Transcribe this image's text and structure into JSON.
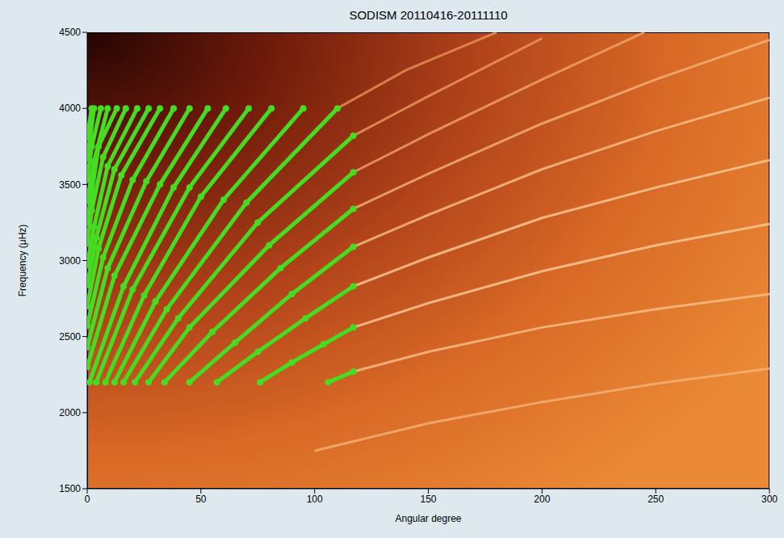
{
  "chart_data": {
    "type": "scatter",
    "title": "SODISM 20110416-20111110",
    "x_label": "Angular degree",
    "y_label": "Frequency (μHz)",
    "xlim": [
      0,
      300
    ],
    "ylim": [
      1500,
      4500
    ],
    "xticks": [
      0,
      50,
      100,
      150,
      200,
      250,
      300
    ],
    "yticks": [
      1500,
      2000,
      2500,
      3000,
      3500,
      4000,
      4500
    ],
    "series": [
      {
        "color": "#f3b37a",
        "marker": "none",
        "line_style": "solid",
        "x": [
          100,
          150,
          200,
          250,
          300
        ],
        "values": [
          1750,
          1930,
          2070,
          2190,
          2290
        ]
      },
      {
        "color": "#f6c08a",
        "marker": "none",
        "line_style": "solid",
        "x": [
          117,
          150,
          200,
          250,
          300
        ],
        "values": [
          2270,
          2400,
          2560,
          2680,
          2780
        ]
      },
      {
        "color": "#f8cc9a",
        "marker": "none",
        "line_style": "solid",
        "x": [
          117,
          150,
          200,
          250,
          300
        ],
        "values": [
          2560,
          2720,
          2930,
          3100,
          3240
        ]
      },
      {
        "color": "#f8cc9a",
        "marker": "none",
        "line_style": "solid",
        "x": [
          117,
          150,
          200,
          250,
          300
        ],
        "values": [
          2830,
          3020,
          3280,
          3480,
          3660
        ]
      },
      {
        "color": "#f6c08a",
        "marker": "none",
        "line_style": "solid",
        "x": [
          117,
          150,
          200,
          250,
          300
        ],
        "values": [
          3090,
          3300,
          3600,
          3850,
          4070
        ]
      },
      {
        "color": "#f3b37a",
        "marker": "none",
        "line_style": "solid",
        "x": [
          117,
          150,
          200,
          250,
          300
        ],
        "values": [
          3340,
          3570,
          3900,
          4190,
          4450
        ]
      },
      {
        "color": "#f0a56a",
        "marker": "none",
        "line_style": "solid",
        "x": [
          117,
          150,
          200,
          245
        ],
        "values": [
          3580,
          3830,
          4190,
          4500
        ]
      },
      {
        "color": "#ec9a60",
        "marker": "none",
        "line_style": "solid",
        "x": [
          117,
          150,
          200
        ],
        "values": [
          3820,
          4080,
          4460
        ]
      },
      {
        "color": "#e89058",
        "marker": "none",
        "line_style": "solid",
        "x": [
          110,
          140,
          180
        ],
        "values": [
          4000,
          4250,
          4500
        ]
      },
      {
        "color": "#44dd22",
        "marker": "circle",
        "line_style": "solid",
        "x": [
          106,
          117
        ],
        "values": [
          2200,
          2270
        ]
      },
      {
        "color": "#44dd22",
        "marker": "circle",
        "line_style": "solid",
        "x": [
          76,
          90,
          104,
          117
        ],
        "values": [
          2200,
          2330,
          2450,
          2560
        ]
      },
      {
        "color": "#44dd22",
        "marker": "circle",
        "line_style": "solid",
        "x": [
          57,
          75,
          96,
          117
        ],
        "values": [
          2200,
          2400,
          2620,
          2830
        ]
      },
      {
        "color": "#44dd22",
        "marker": "circle",
        "line_style": "solid",
        "x": [
          45,
          65,
          90,
          117
        ],
        "values": [
          2200,
          2460,
          2780,
          3090
        ]
      },
      {
        "color": "#44dd22",
        "marker": "circle",
        "line_style": "solid",
        "x": [
          34,
          55,
          85,
          117
        ],
        "values": [
          2200,
          2530,
          2950,
          3340
        ]
      },
      {
        "color": "#44dd22",
        "marker": "circle",
        "line_style": "solid",
        "x": [
          27,
          45,
          80,
          117
        ],
        "values": [
          2200,
          2560,
          3100,
          3580
        ]
      },
      {
        "color": "#44dd22",
        "marker": "circle",
        "line_style": "solid",
        "x": [
          21,
          40,
          75,
          117
        ],
        "values": [
          2200,
          2620,
          3250,
          3820
        ]
      },
      {
        "color": "#44dd22",
        "marker": "circle",
        "line_style": "solid",
        "x": [
          16,
          35,
          70,
          110
        ],
        "values": [
          2200,
          2680,
          3380,
          4000
        ]
      },
      {
        "color": "#44dd22",
        "marker": "circle",
        "line_style": "solid",
        "x": [
          12,
          30,
          60,
          95
        ],
        "values": [
          2200,
          2730,
          3400,
          4000
        ]
      },
      {
        "color": "#44dd22",
        "marker": "circle",
        "line_style": "solid",
        "x": [
          8,
          25,
          50,
          81
        ],
        "values": [
          2200,
          2770,
          3420,
          4000
        ]
      },
      {
        "color": "#44dd22",
        "marker": "circle",
        "line_style": "solid",
        "x": [
          4,
          20,
          45,
          71
        ],
        "values": [
          2200,
          2810,
          3480,
          4000
        ]
      },
      {
        "color": "#44dd22",
        "marker": "circle",
        "line_style": "solid",
        "x": [
          1,
          16,
          38,
          61
        ],
        "values": [
          2200,
          2830,
          3480,
          4000
        ]
      },
      {
        "color": "#44dd22",
        "marker": "circle",
        "line_style": "solid",
        "x": [
          0,
          12,
          32,
          53
        ],
        "values": [
          2300,
          2900,
          3500,
          4000
        ]
      },
      {
        "color": "#44dd22",
        "marker": "circle",
        "line_style": "solid",
        "x": [
          0,
          9,
          26,
          45
        ],
        "values": [
          2430,
          2950,
          3520,
          4000
        ]
      },
      {
        "color": "#44dd22",
        "marker": "circle",
        "line_style": "solid",
        "x": [
          0,
          7,
          20,
          38
        ],
        "values": [
          2570,
          3020,
          3530,
          4000
        ]
      },
      {
        "color": "#44dd22",
        "marker": "circle",
        "line_style": "solid",
        "x": [
          0,
          5,
          15,
          32
        ],
        "values": [
          2700,
          3080,
          3560,
          4000
        ]
      },
      {
        "color": "#44dd22",
        "marker": "circle",
        "line_style": "solid",
        "x": [
          0,
          4,
          12,
          27
        ],
        "values": [
          2840,
          3150,
          3600,
          4000
        ]
      },
      {
        "color": "#44dd22",
        "marker": "circle",
        "line_style": "solid",
        "x": [
          0,
          3,
          9,
          22
        ],
        "values": [
          2970,
          3220,
          3620,
          4000
        ]
      },
      {
        "color": "#44dd22",
        "marker": "circle",
        "line_style": "solid",
        "x": [
          0,
          2,
          7,
          17
        ],
        "values": [
          3110,
          3330,
          3680,
          4000
        ]
      },
      {
        "color": "#44dd22",
        "marker": "circle",
        "line_style": "solid",
        "x": [
          0,
          2,
          5,
          13
        ],
        "values": [
          3250,
          3450,
          3750,
          4000
        ]
      },
      {
        "color": "#44dd22",
        "marker": "circle",
        "line_style": "solid",
        "x": [
          0,
          3,
          9
        ],
        "values": [
          3390,
          3650,
          4000
        ]
      },
      {
        "color": "#44dd22",
        "marker": "circle",
        "line_style": "solid",
        "x": [
          0,
          2,
          6
        ],
        "values": [
          3530,
          3750,
          4000
        ]
      },
      {
        "color": "#44dd22",
        "marker": "circle",
        "line_style": "solid",
        "x": [
          0,
          3
        ],
        "values": [
          3670,
          4000
        ]
      },
      {
        "color": "#44dd22",
        "marker": "circle",
        "line_style": "solid",
        "x": [
          0,
          2
        ],
        "values": [
          3810,
          4000
        ]
      }
    ]
  }
}
